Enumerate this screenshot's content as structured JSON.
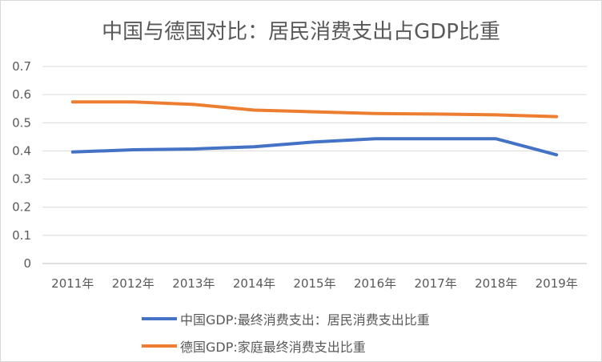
{
  "chart_data": {
    "type": "line",
    "title": "中国与德国对比：居民消费支出占GDP比重",
    "categories": [
      "2011年",
      "2012年",
      "2013年",
      "2014年",
      "2015年",
      "2016年",
      "2017年",
      "2018年",
      "2019年"
    ],
    "series": [
      {
        "name": "中国GDP:最终消费支出：居民消费支出比重",
        "color": "#4472C4",
        "values": [
          0.396,
          0.404,
          0.407,
          0.415,
          0.432,
          0.443,
          0.443,
          0.443,
          0.386
        ]
      },
      {
        "name": "德国GDP:家庭最终消费支出比重",
        "color": "#ED7D31",
        "values": [
          0.574,
          0.574,
          0.565,
          0.545,
          0.539,
          0.533,
          0.531,
          0.528,
          0.522
        ]
      }
    ],
    "yticks": [
      "0",
      "0.1",
      "0.2",
      "0.3",
      "0.4",
      "0.5",
      "0.6",
      "0.7"
    ],
    "ylim": [
      0,
      0.7
    ],
    "grid": true,
    "legend": "bottom"
  }
}
